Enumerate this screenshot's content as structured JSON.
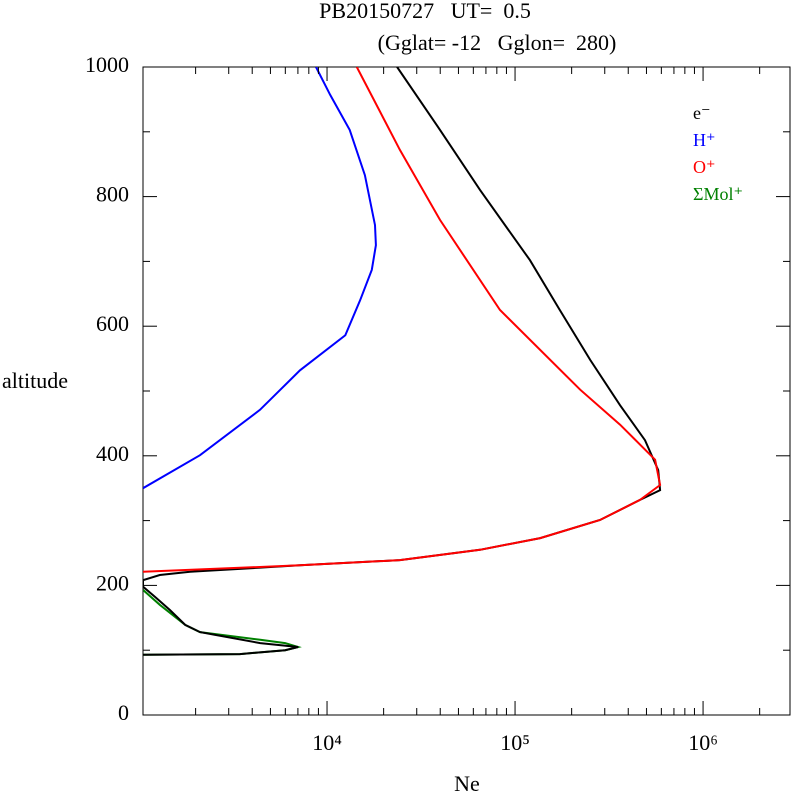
{
  "chart_data": {
    "type": "line",
    "title": "PB20150727   UT=  0.5",
    "subtitle": "(Gglat= -12   Gglon=  280)",
    "x_label": "Ne",
    "y_label": "altitude",
    "x_log": true,
    "xlim": [
      1050,
      2900000
    ],
    "ylim": [
      0,
      1000
    ],
    "xticks": [
      {
        "value": 10000,
        "label": "10⁴"
      },
      {
        "value": 100000,
        "label": "10⁵"
      },
      {
        "value": 1000000,
        "label": "10⁶"
      }
    ],
    "xminorticks": [
      2000,
      3000,
      4000,
      5000,
      6000,
      7000,
      8000,
      9000,
      20000,
      30000,
      40000,
      50000,
      60000,
      70000,
      80000,
      90000,
      200000,
      300000,
      400000,
      500000,
      600000,
      700000,
      800000,
      900000,
      2000000
    ],
    "yticks": [
      0,
      200,
      400,
      600,
      800,
      1000
    ],
    "yminorticks": [
      100,
      300,
      500,
      700,
      900
    ],
    "legend": "top-right",
    "series": [
      {
        "name": "e⁻",
        "color": "#000000",
        "x": [
          1050,
          3440,
          5990,
          7020,
          4410,
          2110,
          1760,
          1460,
          1220,
          1050,
          1050,
          1290,
          1870,
          7180,
          24400,
          65100,
          136000,
          283000,
          462000,
          591000,
          577000,
          491000,
          362000,
          251000,
          173000,
          120000,
          65200,
          39900,
          23600
        ],
        "y": [
          93,
          94,
          100,
          105,
          111,
          128,
          139,
          162,
          182,
          198,
          208,
          216,
          221,
          231,
          239,
          255,
          273,
          301,
          332,
          347,
          378,
          424,
          478,
          548,
          625,
          702,
          810,
          903,
          1000
        ]
      },
      {
        "name": "H⁺",
        "color": "#0000ff",
        "x": [
          1050,
          2110,
          4400,
          7180,
          12500,
          15000,
          17300,
          18200,
          18000,
          15900,
          13200,
          10400,
          8740
        ],
        "y": [
          350,
          401,
          471,
          532,
          586,
          640,
          687,
          725,
          756,
          833,
          903,
          957,
          1000
        ]
      },
      {
        "name": "O⁺",
        "color": "#ff0000",
        "x": [
          1050,
          7180,
          24400,
          65100,
          136000,
          283000,
          462000,
          591000,
          556000,
          362000,
          222000,
          83200,
          39900,
          24400,
          14400
        ],
        "y": [
          221,
          231,
          239,
          255,
          273,
          301,
          332,
          355,
          394,
          448,
          502,
          625,
          764,
          872,
          1000
        ]
      },
      {
        "name": "ΣMol⁺",
        "color": "#008000",
        "x": [
          1050,
          3440,
          5990,
          7020,
          5990,
          4410,
          2110,
          1760,
          1290,
          1050
        ],
        "y": [
          93,
          94,
          100,
          105,
          111,
          116,
          128,
          139,
          170,
          193
        ]
      }
    ]
  }
}
